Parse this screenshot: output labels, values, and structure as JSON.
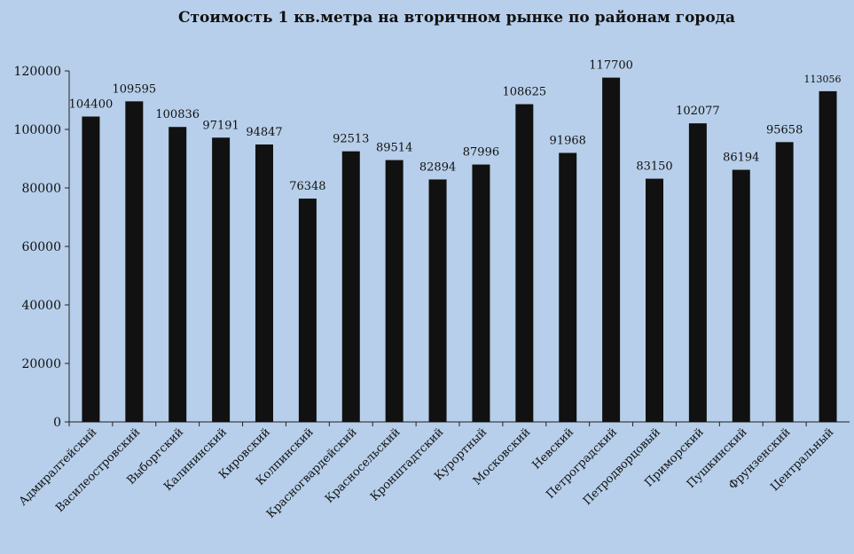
{
  "chart_data": {
    "type": "bar",
    "title": "Стоимость 1 кв.метра на вторичном  рынке по районам  города",
    "xlabel": "",
    "ylabel": "",
    "ylim": [
      0,
      120000
    ],
    "yticks": [
      "0",
      "20000",
      "40000",
      "60000",
      "80000",
      "100000",
      "120000"
    ],
    "grid": false,
    "legend": "none",
    "categories": [
      "Адмиралтейский",
      "Василеостровский",
      "Выборгский",
      "Калининский",
      "Кировский",
      "Колпинский",
      "Красногвардейский",
      "Красносельский",
      "Кронштадтский",
      "Курортный",
      "Московский",
      "Невский",
      "Петроградский",
      "Петродворцовый",
      "Приморский",
      "Пушкинский",
      "Фрунзенский",
      "Центральный"
    ],
    "values": [
      104400,
      109595,
      100836,
      97191,
      94847,
      76348,
      92513,
      89514,
      82894,
      87996,
      108625,
      91968,
      117700,
      83150,
      102077,
      86194,
      95658,
      113056
    ],
    "bar_color": "#111111",
    "background_color": "#b7cfea"
  }
}
